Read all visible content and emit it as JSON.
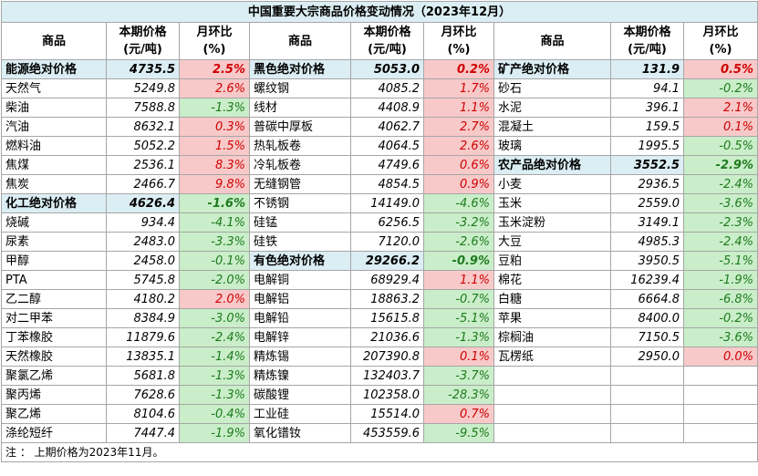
{
  "title": "中国重要大宗商品价格变动情况（2023年12月）",
  "header": {
    "name": "商品",
    "price": [
      "本期价格",
      "(元/吨)"
    ],
    "change": [
      "月环比",
      "(%)"
    ]
  },
  "groups": [
    {
      "rows": [
        {
          "name": "能源绝对价格",
          "price": "4735.5",
          "change": "2.5%",
          "summary": true
        },
        {
          "name": "天然气",
          "price": "5249.8",
          "change": "2.6%"
        },
        {
          "name": "柴油",
          "price": "7588.8",
          "change": "-1.3%"
        },
        {
          "name": "汽油",
          "price": "8632.1",
          "change": "0.3%"
        },
        {
          "name": "燃料油",
          "price": "5052.2",
          "change": "1.5%"
        },
        {
          "name": "焦煤",
          "price": "2536.1",
          "change": "8.3%"
        },
        {
          "name": "焦炭",
          "price": "2466.7",
          "change": "9.8%"
        },
        {
          "name": "化工绝对价格",
          "price": "4626.4",
          "change": "-1.6%",
          "summary": true
        },
        {
          "name": "烧碱",
          "price": "934.4",
          "change": "-4.1%"
        },
        {
          "name": "尿素",
          "price": "2483.0",
          "change": "-3.3%"
        },
        {
          "name": "甲醇",
          "price": "2458.0",
          "change": "-0.1%"
        },
        {
          "name": "PTA",
          "price": "5745.8",
          "change": "-2.0%"
        },
        {
          "name": "乙二醇",
          "price": "4180.2",
          "change": "2.0%"
        },
        {
          "name": "对二甲苯",
          "price": "8384.9",
          "change": "-3.0%"
        },
        {
          "name": "丁苯橡胶",
          "price": "11879.6",
          "change": "-2.4%"
        },
        {
          "name": "天然橡胶",
          "price": "13835.1",
          "change": "-1.4%"
        },
        {
          "name": "聚氯乙烯",
          "price": "5681.8",
          "change": "-1.3%"
        },
        {
          "name": "聚丙烯",
          "price": "7628.6",
          "change": "-1.3%"
        },
        {
          "name": "聚乙烯",
          "price": "8104.6",
          "change": "-0.4%"
        },
        {
          "name": "涤纶短纤",
          "price": "7447.4",
          "change": "-1.9%"
        }
      ]
    },
    {
      "rows": [
        {
          "name": "黑色绝对价格",
          "price": "5053.0",
          "change": "0.2%",
          "summary": true
        },
        {
          "name": "螺纹钢",
          "price": "4085.2",
          "change": "1.7%"
        },
        {
          "name": "线材",
          "price": "4408.9",
          "change": "1.1%"
        },
        {
          "name": "普碳中厚板",
          "price": "4062.7",
          "change": "2.7%"
        },
        {
          "name": "热轧板卷",
          "price": "4064.5",
          "change": "2.6%"
        },
        {
          "name": "冷轧板卷",
          "price": "4749.6",
          "change": "0.6%"
        },
        {
          "name": "无缝钢管",
          "price": "4854.5",
          "change": "0.9%"
        },
        {
          "name": "不锈钢",
          "price": "14149.0",
          "change": "-4.6%"
        },
        {
          "name": "硅锰",
          "price": "6256.5",
          "change": "-3.2%"
        },
        {
          "name": "硅铁",
          "price": "7120.0",
          "change": "-2.6%"
        },
        {
          "name": "有色绝对价格",
          "price": "29266.2",
          "change": "-0.9%",
          "summary": true
        },
        {
          "name": "电解铜",
          "price": "68929.4",
          "change": "1.1%"
        },
        {
          "name": "电解铝",
          "price": "18863.2",
          "change": "-0.7%"
        },
        {
          "name": "电解铅",
          "price": "15615.8",
          "change": "-5.1%"
        },
        {
          "name": "电解锌",
          "price": "21036.6",
          "change": "-1.3%"
        },
        {
          "name": "精炼锡",
          "price": "207390.8",
          "change": "0.1%"
        },
        {
          "name": "精炼镍",
          "price": "132403.7",
          "change": "-3.7%"
        },
        {
          "name": "碳酸锂",
          "price": "102358.0",
          "change": "-28.3%"
        },
        {
          "name": "工业硅",
          "price": "15514.0",
          "change": "0.7%"
        },
        {
          "name": "氧化镨钕",
          "price": "453559.6",
          "change": "-9.5%"
        }
      ]
    },
    {
      "rows": [
        {
          "name": "矿产绝对价格",
          "price": "131.9",
          "change": "0.5%",
          "summary": true
        },
        {
          "name": "砂石",
          "price": "94.1",
          "change": "-0.2%"
        },
        {
          "name": "水泥",
          "price": "396.1",
          "change": "2.1%"
        },
        {
          "name": "混凝土",
          "price": "159.5",
          "change": "0.1%"
        },
        {
          "name": "玻璃",
          "price": "1995.5",
          "change": "-0.5%"
        },
        {
          "name": "农产品绝对价格",
          "price": "3552.5",
          "change": "-2.9%",
          "summary": true
        },
        {
          "name": "小麦",
          "price": "2936.5",
          "change": "-2.4%"
        },
        {
          "name": "玉米",
          "price": "2559.0",
          "change": "-3.6%"
        },
        {
          "name": "玉米淀粉",
          "price": "3149.1",
          "change": "-2.3%"
        },
        {
          "name": "大豆",
          "price": "4985.3",
          "change": "-2.4%"
        },
        {
          "name": "豆粕",
          "price": "3950.5",
          "change": "-5.1%"
        },
        {
          "name": "棉花",
          "price": "16239.4",
          "change": "-1.9%"
        },
        {
          "name": "白糖",
          "price": "6664.8",
          "change": "-6.8%"
        },
        {
          "name": "苹果",
          "price": "8400.0",
          "change": "-0.2%"
        },
        {
          "name": "棕榈油",
          "price": "7150.5",
          "change": "-3.6%"
        },
        {
          "name": "瓦楞纸",
          "price": "2950.0",
          "change": "0.0%"
        }
      ]
    }
  ],
  "note": "注 ： 上期价格为2023年11月。"
}
